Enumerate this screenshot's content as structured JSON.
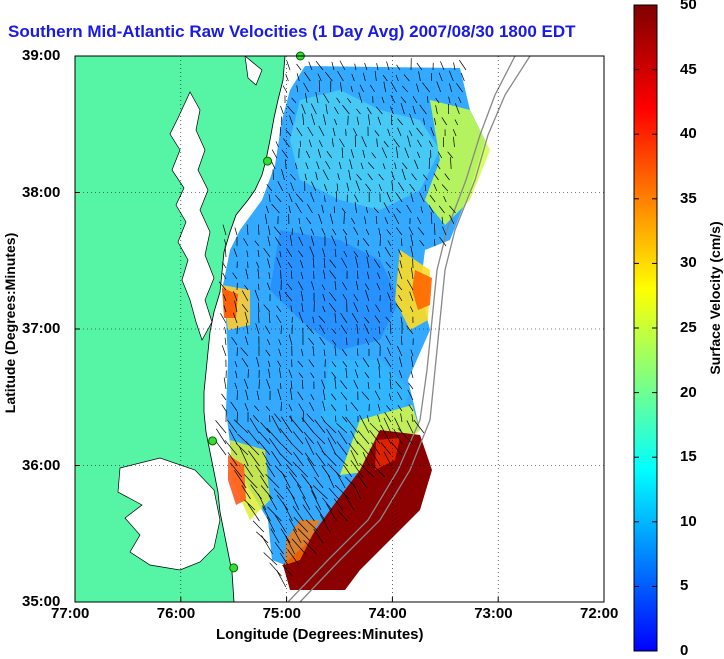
{
  "title": "Southern Mid-Atlantic Raw Velocities (1 Day Avg) 2007/08/30 1800 EDT",
  "xlabel": "Longitude (Degrees:Minutes)",
  "ylabel": "Latitude (Degrees:Minutes)",
  "colorbar_label": "Surface Velocity (cm/s)",
  "x_ticks": [
    "77:00",
    "76:00",
    "75:00",
    "74:00",
    "73:00",
    "72:00"
  ],
  "y_ticks": [
    "39:00",
    "38:00",
    "37:00",
    "36:00",
    "35:00"
  ],
  "colorbar_ticks": [
    "50",
    "45",
    "40",
    "35",
    "30",
    "25",
    "20",
    "15",
    "10",
    "5",
    "0"
  ],
  "colors": {
    "land": "#55f5a5",
    "water": "#ffffff",
    "title": "#1a1ae6"
  },
  "chart_data": {
    "type": "heatmap",
    "title": "Southern Mid-Atlantic Raw Velocities (1 Day Avg) 2007/08/30 1800 EDT",
    "xlabel": "Longitude (Degrees:Minutes)",
    "ylabel": "Latitude (Degrees:Minutes)",
    "xlim": [
      -77,
      -72
    ],
    "ylim": [
      35,
      39
    ],
    "colorbar": {
      "label": "Surface Velocity (cm/s)",
      "range": [
        0,
        50
      ],
      "colormap": "jet"
    },
    "grid": true,
    "stations": [
      {
        "lon": -74.87,
        "lat": 39.0
      },
      {
        "lon": -75.18,
        "lat": 38.23
      },
      {
        "lon": -75.7,
        "lat": 36.18
      },
      {
        "lon": -75.5,
        "lat": 35.25
      }
    ]
  }
}
